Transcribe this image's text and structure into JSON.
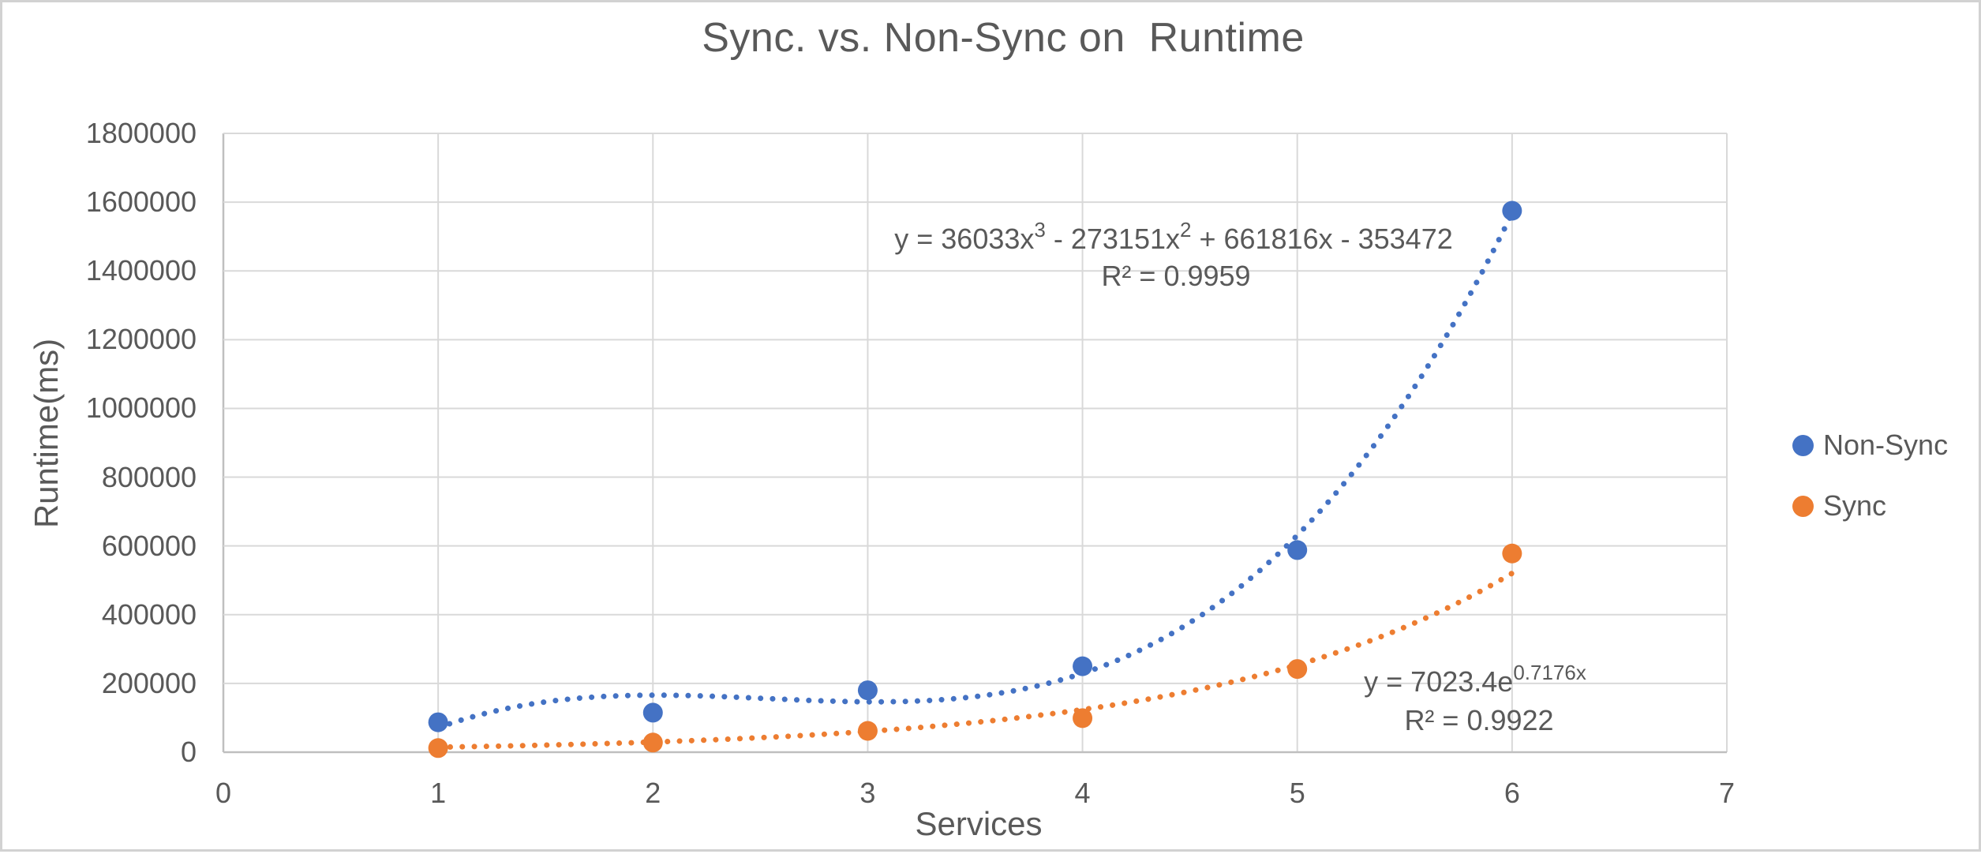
{
  "annotations": {
    "non_sync": {
      "eq_base1": "y = 36033x",
      "eq_sup1": "3",
      "eq_base2": " - 273151x",
      "eq_sup2": "2",
      "eq_base3": " + 661816x - 353472",
      "r2": "R² = 0.9959"
    },
    "sync": {
      "eq_base1": "y = 7023.4e",
      "eq_sup1": "0.7176x",
      "r2": "R² = 0.9922"
    }
  },
  "chart_data": {
    "type": "scatter",
    "title": "Sync. vs. Non-Sync on  Runtime",
    "xlabel": "Services",
    "ylabel": "Runtime(ms)",
    "xlim": [
      0,
      7
    ],
    "ylim": [
      0,
      1800000
    ],
    "xticks": [
      0,
      1,
      2,
      3,
      4,
      5,
      6,
      7
    ],
    "yticks": [
      0,
      200000,
      400000,
      600000,
      800000,
      1000000,
      1200000,
      1400000,
      1600000,
      1800000
    ],
    "grid": true,
    "legend_position": "right-center",
    "text_color": "#595959",
    "gridline_color": "#D9D9D9",
    "axis_line_color": "#BFBFBF",
    "x": [
      1,
      2,
      3,
      4,
      5,
      6
    ],
    "series": [
      {
        "name": "Non-Sync",
        "color": "#4472C4",
        "marker": "circle",
        "values": [
          87000,
          115000,
          180000,
          250000,
          588000,
          1575000
        ],
        "trendline": {
          "type": "polynomial",
          "degree": 3,
          "coefficients": [
            36033,
            -273151,
            661816,
            -353472
          ],
          "style": "dotted",
          "equation": "y = 36033x³ - 273151x² + 661816x - 353472",
          "r_squared": 0.9959
        }
      },
      {
        "name": "Sync",
        "color": "#ED7D31",
        "marker": "circle",
        "values": [
          12000,
          28000,
          62000,
          99000,
          242000,
          578000
        ],
        "trendline": {
          "type": "exponential",
          "a": 7023.4,
          "b": 0.7176,
          "style": "dotted",
          "equation": "y = 7023.4e^(0.7176x)",
          "r_squared": 0.9922
        }
      }
    ]
  }
}
